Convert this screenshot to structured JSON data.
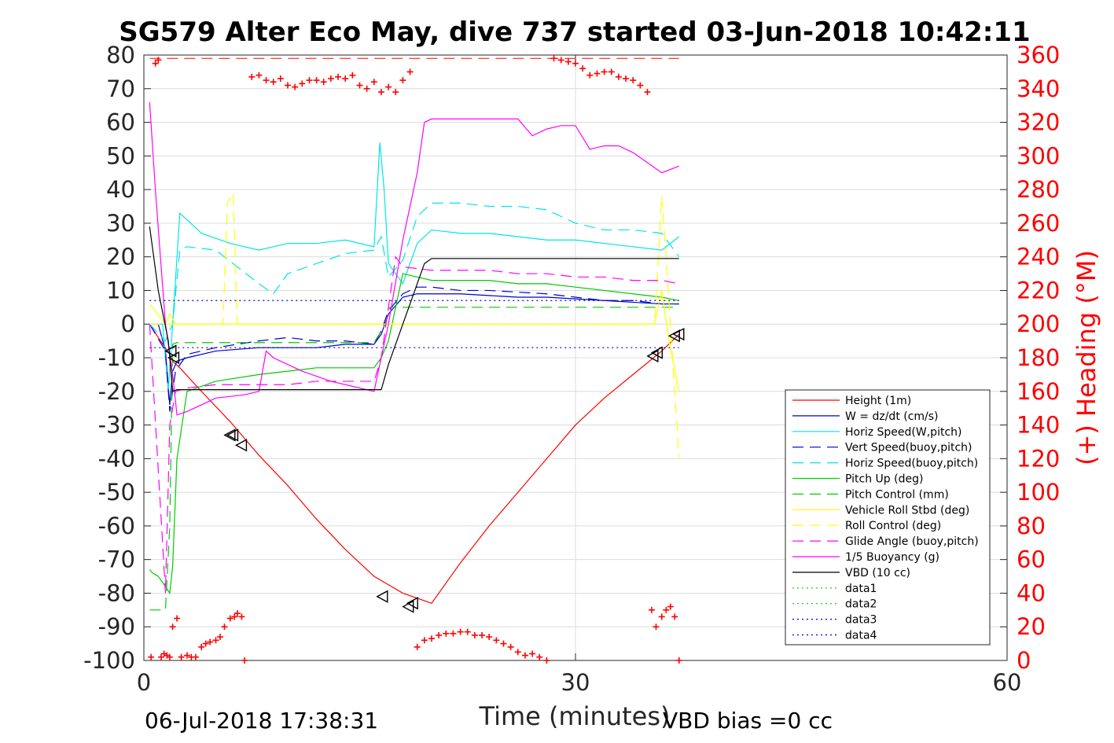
{
  "chart_data": {
    "type": "line",
    "title": "SG579 Alter Eco May, dive 737 started 03-Jun-2018 10:42:11",
    "xlabel": "Time (minutes)",
    "ylabel_right": "(+) Heading (°M)",
    "ylabel_left": "",
    "xlim": [
      0,
      60
    ],
    "ylim_left": [
      -100,
      80
    ],
    "ylim_right": [
      0,
      360
    ],
    "x_ticks": [
      "0",
      "30",
      "60"
    ],
    "y_ticks_left": [
      "80",
      "70",
      "60",
      "50",
      "40",
      "30",
      "20",
      "10",
      "0",
      "-10",
      "-20",
      "-30",
      "-40",
      "-50",
      "-60",
      "-70",
      "-80",
      "-90",
      "-100"
    ],
    "y_ticks_right": [
      "360",
      "340",
      "320",
      "300",
      "280",
      "260",
      "240",
      "220",
      "200",
      "180",
      "160",
      "140",
      "120",
      "100",
      "80",
      "60",
      "40",
      "20",
      "0"
    ],
    "grid": true,
    "legend_position": "bottom-right",
    "footer_left": "06-Jul-2018 17:38:31",
    "footer_right": "VBD bias =0 cc",
    "colors": {
      "red": "#ff0000",
      "blue": "#0000cc",
      "cyan": "#00e5e5",
      "green": "#00cc00",
      "yellow": "#ffff00",
      "magenta": "#ff00ff",
      "black": "#000000"
    },
    "series": [
      {
        "name": "Height (1m)",
        "color": "#ff0000",
        "dash": "solid",
        "x": [
          0.4,
          1.0,
          1.8,
          2.0,
          2.5,
          4,
          6,
          8,
          10,
          12,
          14,
          16,
          18,
          20,
          22,
          24,
          26,
          28,
          30,
          32,
          34,
          36,
          37.2
        ],
        "y": [
          0,
          -4,
          -9,
          -11,
          -13,
          -20,
          -29,
          -39,
          -48,
          -58,
          -67,
          -75,
          -80,
          -83,
          -71,
          -60,
          -50,
          -40,
          -30,
          -22,
          -15,
          -8,
          -3
        ]
      },
      {
        "name": "W = dz/dt (cm/s)",
        "color": "#0000cc",
        "dash": "solid",
        "x": [
          0.4,
          1.0,
          1.5,
          1.8,
          2.0,
          2.3,
          3,
          5,
          8,
          10,
          12,
          14,
          16,
          16.5,
          17,
          18,
          19,
          20,
          22,
          24,
          26,
          28,
          30,
          32,
          34,
          36,
          37.2
        ],
        "y": [
          0,
          0,
          -8,
          -24,
          -14,
          -11,
          -10,
          -8,
          -7,
          -7,
          -7,
          -6,
          -6,
          -3,
          3,
          8,
          9,
          9,
          9,
          8.5,
          8,
          8,
          7.5,
          7,
          6.5,
          6,
          6
        ]
      },
      {
        "name": "Horiz Speed(W,pitch)",
        "color": "#00e5e5",
        "dash": "solid",
        "x": [
          0.4,
          1.3,
          1.7,
          2.0,
          2.5,
          3,
          4,
          6,
          8,
          10,
          12,
          14,
          16,
          16.4,
          16.7,
          17,
          17.5,
          18,
          19,
          20,
          22,
          24,
          26,
          28,
          30,
          32,
          34,
          36,
          37.2
        ],
        "y": [
          0,
          0,
          -20,
          0,
          33,
          31,
          27,
          24,
          22,
          24,
          24,
          25,
          23,
          54,
          40,
          18,
          15,
          12,
          24,
          28,
          27,
          27,
          26,
          25,
          25,
          24,
          23,
          22,
          26
        ]
      },
      {
        "name": "Vert Speed(buoy,pitch)",
        "color": "#0000cc",
        "dash": "dashed",
        "x": [
          0.4,
          1.5,
          1.8,
          2.2,
          3,
          5,
          8,
          10,
          12,
          14,
          16,
          16.5,
          17,
          18,
          19,
          20,
          22,
          24,
          26,
          28,
          30,
          32,
          34,
          36,
          37.2
        ],
        "y": [
          0,
          -8,
          -26,
          -14,
          -9,
          -7,
          -5,
          -4,
          -5,
          -5,
          -6,
          -2,
          4,
          9,
          11,
          11,
          10,
          10,
          9.5,
          9,
          8,
          7,
          7,
          6,
          6
        ]
      },
      {
        "name": "Horiz Speed(buoy,pitch)",
        "color": "#00e5e5",
        "dash": "dashed",
        "x": [
          0.4,
          1.5,
          2.0,
          2.5,
          3,
          5,
          8,
          9,
          10,
          12,
          14,
          16,
          16.5,
          17,
          18,
          19,
          20,
          22,
          24,
          26,
          28,
          30,
          32,
          34,
          36,
          37.2
        ],
        "y": [
          0,
          -5,
          0,
          22,
          23,
          22,
          12,
          9,
          15,
          18,
          21,
          22,
          26,
          14,
          19,
          32,
          36,
          36,
          35,
          35,
          34,
          30,
          28,
          28,
          27,
          20
        ]
      },
      {
        "name": "Pitch Up (deg)",
        "color": "#00cc00",
        "dash": "solid",
        "x": [
          0.4,
          0.6,
          1.0,
          1.5,
          1.8,
          2.0,
          2.3,
          3,
          5,
          8,
          10,
          12,
          14,
          16,
          16.5,
          17,
          18,
          19,
          20,
          22,
          24,
          26,
          28,
          30,
          32,
          34,
          36,
          37.2
        ],
        "y": [
          -73,
          -74,
          -75,
          -78,
          -80,
          -72,
          -40,
          -20,
          -17,
          -15,
          -14,
          -13,
          -13,
          -13,
          -10,
          -5,
          15,
          14,
          13,
          13,
          13,
          12,
          12,
          11,
          10,
          9,
          8,
          7
        ]
      },
      {
        "name": "Pitch Control (mm)",
        "color": "#00cc00",
        "dash": "dashed",
        "x": [
          0.4,
          1.3,
          1.5,
          1.8,
          2.0,
          2.3,
          5,
          10,
          16,
          16.8,
          17,
          18,
          20,
          25,
          30,
          37.2
        ],
        "y": [
          -85,
          -85,
          -85,
          -60,
          -6,
          -5.5,
          -5.5,
          -5.5,
          -5.5,
          0,
          5,
          5,
          5,
          5,
          5,
          5
        ]
      },
      {
        "name": "Vehicle Roll Stbd (deg)",
        "color": "#ffff00",
        "dash": "solid",
        "x": [
          0.4,
          1.5,
          1.8,
          2.2,
          3,
          5,
          6,
          8,
          10,
          14,
          16,
          18,
          20,
          24,
          28,
          32,
          35.5,
          36,
          36.5,
          37.2
        ],
        "y": [
          6,
          0,
          3,
          0,
          0,
          0,
          0,
          0,
          0,
          0,
          0,
          0,
          0,
          0,
          0,
          0,
          0,
          10,
          -5,
          -20
        ]
      },
      {
        "name": "Roll Control (deg)",
        "color": "#ffff00",
        "dash": "dashed",
        "x": [
          0.4,
          1.5,
          2,
          5.5,
          5.8,
          6.2,
          6.5,
          7,
          10,
          16,
          20,
          30,
          35.5,
          36,
          36.3,
          36.6,
          37.2
        ],
        "y": [
          0,
          0,
          0,
          0,
          36,
          39,
          0,
          0,
          0,
          0,
          0,
          0,
          0,
          38,
          20,
          0,
          -40
        ]
      },
      {
        "name": "Glide Angle (buoy,pitch)",
        "color": "#ff00ff",
        "dash": "dashed",
        "x": [
          0.4,
          1.3,
          1.5,
          1.8,
          2.2,
          3,
          5,
          8,
          10,
          12,
          14,
          16,
          16.5,
          17,
          17.5,
          18,
          20,
          22,
          24,
          26,
          28,
          30,
          32,
          34,
          36,
          37.2
        ],
        "y": [
          0,
          -65,
          -80,
          -30,
          -20,
          -19,
          -18,
          -18,
          -18,
          -17,
          -17,
          -17,
          -10,
          5,
          20,
          17,
          16,
          16,
          16,
          15,
          15,
          14,
          14,
          13,
          13,
          12
        ]
      },
      {
        "name": "1/5 Buoyancy (g)",
        "color": "#ff00ff",
        "dash": "solid",
        "x": [
          0.4,
          0.8,
          1.5,
          2.0,
          2.3,
          3,
          5,
          7,
          8,
          8.5,
          9,
          11,
          13,
          15,
          16,
          16.5,
          17,
          18,
          19,
          19.5,
          20,
          22,
          25,
          26,
          27,
          28,
          29,
          30,
          31,
          32,
          33,
          34,
          35,
          36,
          37.2
        ],
        "y": [
          66,
          40,
          0,
          -15,
          -27,
          -26,
          -22,
          -21,
          -20,
          -8,
          -10,
          -14,
          -17,
          -19,
          -20,
          -10,
          0,
          25,
          45,
          60,
          61,
          61,
          61,
          61,
          56,
          58,
          59,
          59,
          52,
          53,
          53,
          51,
          48,
          45,
          47
        ]
      },
      {
        "name": "VBD (10 cc)",
        "color": "#000000",
        "dash": "solid",
        "x": [
          0.4,
          1.0,
          1.7,
          1.9,
          2.0,
          2.3,
          5,
          10,
          15,
          16.5,
          17,
          18,
          19.5,
          20,
          25,
          30,
          35,
          37.2
        ],
        "y": [
          29,
          10,
          -5,
          -15,
          -20,
          -19.5,
          -19.5,
          -19.5,
          -19.5,
          -19.5,
          -12,
          0,
          18,
          19.5,
          19.5,
          19.5,
          19.5,
          19.5
        ]
      },
      {
        "name": "data1",
        "color": "#00cc00",
        "dash": "dotted",
        "x": [],
        "y": []
      },
      {
        "name": "data2",
        "color": "#00cc00",
        "dash": "dotted",
        "x": [],
        "y": []
      },
      {
        "name": "data3",
        "color": "#0000cc",
        "dash": "dotted",
        "x": [
          0.4,
          37.2
        ],
        "y": [
          7,
          7
        ]
      },
      {
        "name": "data4",
        "color": "#0000cc",
        "dash": "dotted",
        "x": [
          0.4,
          37.2
        ],
        "y": [
          -7,
          -7
        ]
      }
    ],
    "heading_reference": {
      "color": "#ff0000",
      "dash": "dashed",
      "x": [
        0.4,
        37.2
      ],
      "heading": [
        358,
        358
      ]
    },
    "heading": {
      "color": "#ff0000",
      "marker": "+",
      "x": [
        0.5,
        0.8,
        1.0,
        1.2,
        1.4,
        1.6,
        1.8,
        2.0,
        2.3,
        2.6,
        3.0,
        3.3,
        3.6,
        4.0,
        4.3,
        4.6,
        5.0,
        5.3,
        5.6,
        6.0,
        6.3,
        6.5,
        6.8,
        7.0,
        7.5,
        8.0,
        8.5,
        9.0,
        9.5,
        10,
        10.5,
        11,
        11.5,
        12,
        12.5,
        13,
        13.5,
        14,
        14.5,
        15,
        15.5,
        16,
        16.5,
        17,
        17.5,
        18,
        18.5,
        19,
        19.5,
        20,
        20.5,
        21,
        21.5,
        22,
        22.5,
        23,
        23.5,
        24,
        24.5,
        25,
        25.5,
        26,
        26.5,
        27,
        27.5,
        28,
        28.5,
        29,
        29.5,
        30,
        30.5,
        31,
        31.5,
        32,
        32.5,
        33,
        33.5,
        34,
        34.5,
        35,
        35.3,
        35.6,
        36.0,
        36.3,
        36.6,
        36.9,
        37.2
      ],
      "heading": [
        2,
        355,
        357,
        2,
        4,
        3,
        2,
        20,
        25,
        2,
        3,
        2,
        2,
        8,
        10,
        11,
        12,
        14,
        20,
        25,
        26,
        28,
        26,
        0,
        347,
        348,
        345,
        344,
        346,
        342,
        341,
        343,
        345,
        345,
        344,
        346,
        347,
        346,
        348,
        342,
        340,
        344,
        338,
        341,
        338,
        345,
        350,
        8,
        12,
        13,
        15,
        16,
        16,
        17,
        17,
        15,
        15,
        14,
        12,
        10,
        8,
        5,
        3,
        4,
        2,
        0,
        358,
        357,
        356,
        355,
        352,
        348,
        349,
        350,
        350,
        347,
        346,
        345,
        342,
        338,
        30,
        20,
        26,
        30,
        32,
        26,
        0
      ]
    },
    "triangles": {
      "marker": "triangle",
      "x": [
        1.9,
        2.1,
        6.0,
        6.2,
        6.8,
        16.6,
        18.4,
        18.7,
        35.4,
        35.7,
        36.9,
        37.2
      ],
      "y": [
        -8,
        -10,
        -33,
        -33,
        -36,
        -81,
        -84,
        -83,
        -9.5,
        -8.5,
        -3.5,
        -3
      ]
    }
  },
  "legend_title": ""
}
